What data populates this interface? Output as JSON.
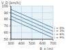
{
  "chart_data": {
    "type": "line",
    "x_label": "R_p [m]",
    "y_label": "V_D [km/h]",
    "x": [
      300,
      400,
      500,
      600,
      700
    ],
    "xlim": [
      300,
      700
    ],
    "xticks": [
      300,
      400,
      500,
      600,
      700
    ],
    "ylim": [
      50,
      100
    ],
    "yticks": [
      50,
      60,
      70,
      80,
      90,
      100
    ],
    "grid": true,
    "series": [
      {
        "name": "i = 0%",
        "color": "#2a6f97",
        "values": [
          95,
          88,
          81,
          74,
          67
        ]
      },
      {
        "name": "i = 3%",
        "color": "#2a6f97",
        "values": [
          90,
          83,
          76,
          69,
          62
        ]
      },
      {
        "name": "i = 6%",
        "color": "#2a6f97",
        "values": [
          85,
          78,
          71,
          64,
          57
        ]
      },
      {
        "name": "i = 9%",
        "color": "#2a6f97",
        "values": [
          80,
          73,
          66,
          59,
          52
        ]
      }
    ]
  }
}
